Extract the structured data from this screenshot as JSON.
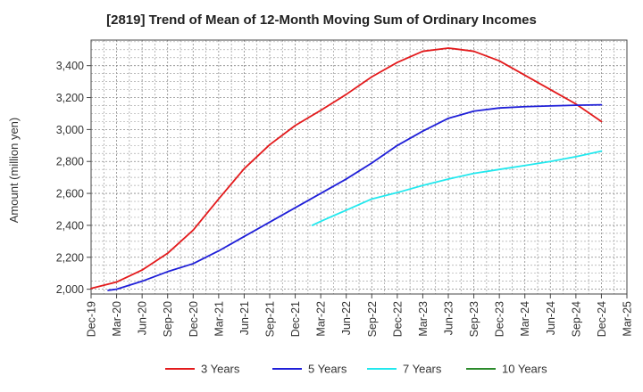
{
  "chart_data": {
    "type": "line",
    "title": "[2819]  Trend of Mean of 12-Month Moving Sum of Ordinary Incomes",
    "xlabel": "",
    "ylabel": "Amount (million yen)",
    "ylim": [
      1970,
      3560
    ],
    "yticks": [
      2000,
      2200,
      2400,
      2600,
      2800,
      3000,
      3200,
      3400
    ],
    "ytick_labels": [
      "2,000",
      "2,200",
      "2,400",
      "2,600",
      "2,800",
      "3,000",
      "3,200",
      "3,400"
    ],
    "x_tick_labels": [
      "Dec-19",
      "Mar-20",
      "Jun-20",
      "Sep-20",
      "Dec-20",
      "Mar-21",
      "Jun-21",
      "Sep-21",
      "Dec-21",
      "Mar-22",
      "Jun-22",
      "Sep-22",
      "Dec-22",
      "Mar-23",
      "Jun-23",
      "Sep-23",
      "Dec-23",
      "Mar-24",
      "Jun-24",
      "Sep-24",
      "Dec-24",
      "Mar-25"
    ],
    "grid": true,
    "legend_position": "bottom",
    "series": [
      {
        "name": "3 Years",
        "color": "#e31a1c",
        "x": [
          0,
          1,
          2,
          3,
          4,
          5,
          6,
          7,
          8,
          9,
          10,
          11,
          12,
          13,
          14,
          15,
          16,
          17,
          18,
          19,
          20
        ],
        "values": [
          2005,
          2045,
          2120,
          2225,
          2370,
          2565,
          2755,
          2905,
          3025,
          3120,
          3220,
          3330,
          3420,
          3490,
          3510,
          3490,
          3430,
          3340,
          3250,
          3160,
          3050
        ]
      },
      {
        "name": "5 Years",
        "color": "#1f1fd8",
        "x": [
          0.667,
          1,
          2,
          3,
          4,
          5,
          6,
          7,
          8,
          9,
          10,
          11,
          12,
          13,
          14,
          15,
          16,
          17,
          18,
          19,
          20
        ],
        "values": [
          1993,
          2000,
          2050,
          2110,
          2160,
          2240,
          2330,
          2420,
          2510,
          2600,
          2690,
          2790,
          2900,
          2990,
          3070,
          3115,
          3135,
          3143,
          3148,
          3152,
          3155
        ]
      },
      {
        "name": "7 Years",
        "color": "#22e8ee",
        "x": [
          8.667,
          9,
          10,
          11,
          12,
          13,
          14,
          15,
          16,
          17,
          18,
          19,
          20
        ],
        "values": [
          2400,
          2425,
          2495,
          2565,
          2605,
          2650,
          2690,
          2725,
          2750,
          2775,
          2800,
          2830,
          2865
        ]
      },
      {
        "name": "10 Years",
        "color": "#2b8a2b",
        "x": [],
        "values": []
      }
    ]
  }
}
